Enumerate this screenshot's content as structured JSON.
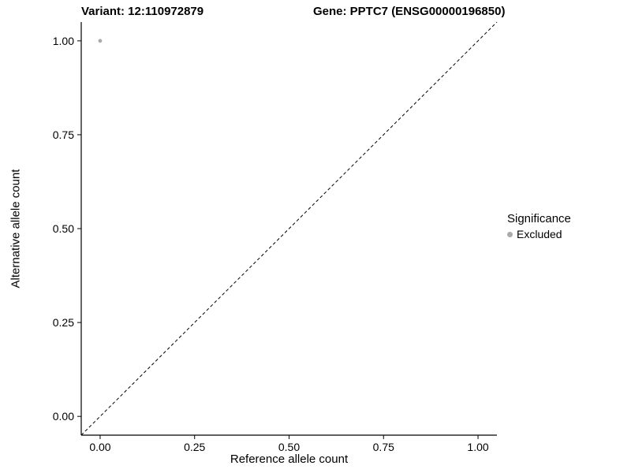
{
  "titles": {
    "variant": "Variant: 12:110972879",
    "gene": "Gene: PPTC7 (ENSG00000196850)"
  },
  "axes": {
    "x_label": "Reference allele count",
    "y_label": "Alternative allele count"
  },
  "legend": {
    "title": "Significance",
    "entries": [
      {
        "label": "Excluded",
        "color": "#aaaaaa"
      }
    ]
  },
  "chart_data": {
    "type": "scatter",
    "title": "Variant: 12:110972879   Gene: PPTC7 (ENSG00000196850)",
    "xlabel": "Reference allele count",
    "ylabel": "Alternative allele count",
    "xlim": [
      0,
      1
    ],
    "ylim": [
      0,
      1
    ],
    "expansion": 0.05,
    "x_ticks": [
      0.0,
      0.25,
      0.5,
      0.75,
      1.0
    ],
    "y_ticks": [
      0.0,
      0.25,
      0.5,
      0.75,
      1.0
    ],
    "tick_labels": [
      "0.00",
      "0.25",
      "0.50",
      "0.75",
      "1.00"
    ],
    "grid": false,
    "legend_position": "right",
    "reference_line": {
      "style": "dashed",
      "slope": 1,
      "intercept": 0,
      "color": "#000000"
    },
    "series": [
      {
        "name": "Excluded",
        "color": "#aaaaaa",
        "points": [
          {
            "x": 0.0,
            "y": 1.0
          }
        ]
      }
    ]
  }
}
